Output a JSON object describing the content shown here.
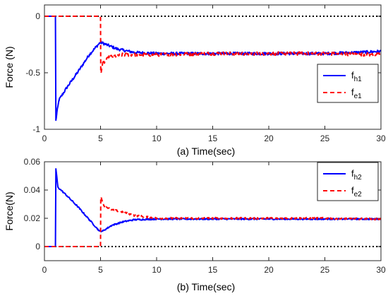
{
  "chart_data": [
    {
      "type": "line",
      "panel": "a",
      "xlabel": "(a) Time(sec)",
      "ylabel": "Force (N)",
      "xlim": [
        0,
        30
      ],
      "ylim": [
        -1,
        0.1
      ],
      "xticks": [
        "0",
        "5",
        "10",
        "15",
        "20",
        "25",
        "30"
      ],
      "yticks": [
        "0",
        "-0.5",
        "-1"
      ],
      "reference_line": {
        "y": 0,
        "style": "black dotted"
      },
      "legend_position": "right",
      "series": [
        {
          "name_main": "f",
          "name_sub": "h1",
          "color": "#0000FF",
          "style": "solid",
          "noise": 0.012,
          "points": [
            [
              0,
              0
            ],
            [
              0.98,
              0
            ],
            [
              1.02,
              -0.92
            ],
            [
              1.1,
              -0.86
            ],
            [
              1.3,
              -0.74
            ],
            [
              2,
              -0.63
            ],
            [
              3,
              -0.49
            ],
            [
              4,
              -0.34
            ],
            [
              4.8,
              -0.25
            ],
            [
              5,
              -0.23
            ],
            [
              5.5,
              -0.25
            ],
            [
              6.5,
              -0.29
            ],
            [
              8,
              -0.32
            ],
            [
              10,
              -0.33
            ],
            [
              15,
              -0.33
            ],
            [
              20,
              -0.33
            ],
            [
              25,
              -0.33
            ],
            [
              28,
              -0.32
            ],
            [
              30,
              -0.31
            ]
          ]
        },
        {
          "name_main": "f",
          "name_sub": "e1",
          "color": "#FF0000",
          "style": "dashed",
          "noise": 0.015,
          "points": [
            [
              0,
              0
            ],
            [
              4.98,
              0
            ],
            [
              5.0,
              -0.02
            ],
            [
              5.02,
              -0.5
            ],
            [
              5.2,
              -0.42
            ],
            [
              5.8,
              -0.36
            ],
            [
              7,
              -0.34
            ],
            [
              10,
              -0.34
            ],
            [
              15,
              -0.33
            ],
            [
              20,
              -0.33
            ],
            [
              25,
              -0.33
            ],
            [
              30,
              -0.34
            ]
          ]
        }
      ]
    },
    {
      "type": "line",
      "panel": "b",
      "xlabel": "(b) Time(sec)",
      "ylabel": "Force(N)",
      "xlim": [
        0,
        30
      ],
      "ylim": [
        -0.01,
        0.06
      ],
      "xticks": [
        "0",
        "5",
        "10",
        "15",
        "20",
        "25",
        "30"
      ],
      "yticks": [
        "0.06",
        "0.04",
        "0.02",
        "0"
      ],
      "reference_line": {
        "y": 0,
        "style": "black dotted"
      },
      "legend_position": "top-right",
      "series": [
        {
          "name_main": "f",
          "name_sub": "h2",
          "color": "#0000FF",
          "style": "solid",
          "noise": 0.0005,
          "points": [
            [
              0,
              0
            ],
            [
              0.98,
              0
            ],
            [
              1.02,
              0.055
            ],
            [
              1.2,
              0.042
            ],
            [
              2,
              0.036
            ],
            [
              3,
              0.028
            ],
            [
              4,
              0.019
            ],
            [
              4.9,
              0.011
            ],
            [
              5.2,
              0.011
            ],
            [
              6,
              0.015
            ],
            [
              7,
              0.0175
            ],
            [
              8,
              0.019
            ],
            [
              10,
              0.0195
            ],
            [
              15,
              0.0195
            ],
            [
              20,
              0.0195
            ],
            [
              25,
              0.0195
            ],
            [
              30,
              0.0195
            ]
          ]
        },
        {
          "name_main": "f",
          "name_sub": "e2",
          "color": "#FF0000",
          "style": "dashed",
          "noise": 0.0006,
          "points": [
            [
              0,
              0
            ],
            [
              4.98,
              0
            ],
            [
              5.0,
              0.001
            ],
            [
              5.02,
              0.035
            ],
            [
              5.3,
              0.029
            ],
            [
              6,
              0.026
            ],
            [
              7,
              0.0245
            ],
            [
              8,
              0.022
            ],
            [
              9,
              0.021
            ],
            [
              10,
              0.02
            ],
            [
              15,
              0.02
            ],
            [
              20,
              0.02
            ],
            [
              25,
              0.02
            ],
            [
              30,
              0.0195
            ]
          ]
        }
      ]
    }
  ]
}
